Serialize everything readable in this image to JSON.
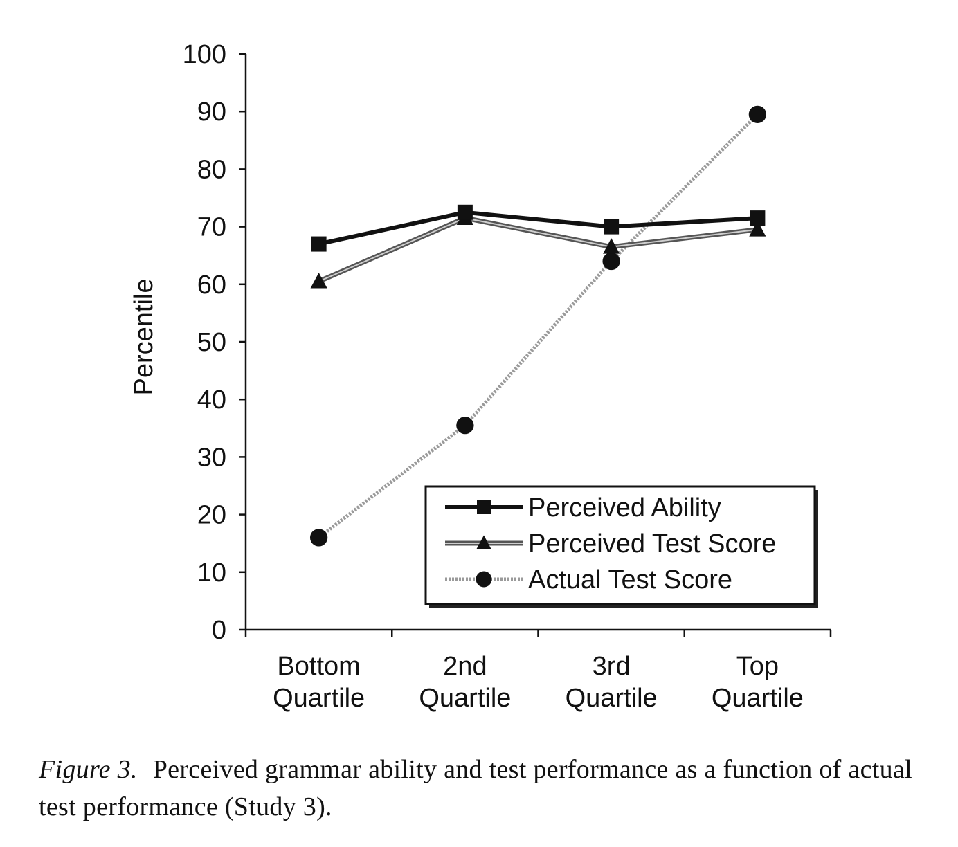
{
  "chart_data": {
    "type": "line",
    "ylabel": "Percentile",
    "xlabel": "",
    "ylim": [
      0,
      100
    ],
    "yticks": [
      0,
      10,
      20,
      30,
      40,
      50,
      60,
      70,
      80,
      90,
      100
    ],
    "categories": [
      "Bottom Quartile",
      "2nd Quartile",
      "3rd Quartile",
      "Top Quartile"
    ],
    "category_lines": [
      [
        "Bottom",
        "Quartile"
      ],
      [
        "2nd",
        "Quartile"
      ],
      [
        "3rd",
        "Quartile"
      ],
      [
        "Top",
        "Quartile"
      ]
    ],
    "series": [
      {
        "name": "Perceived Ability",
        "values": [
          67,
          72.5,
          70,
          71.5
        ],
        "marker": "square",
        "color": "#111111",
        "style": "solid-thick"
      },
      {
        "name": "Perceived Test Score",
        "values": [
          60.5,
          71.5,
          66.5,
          69.5
        ],
        "marker": "triangle",
        "color": "#555555",
        "style": "double"
      },
      {
        "name": "Actual Test Score",
        "values": [
          16,
          35.5,
          64,
          89.5
        ],
        "marker": "circle",
        "color": "#9a9a9a",
        "style": "dotted"
      }
    ],
    "legend_position": "bottom-right",
    "grid": false
  },
  "caption": {
    "label": "Figure 3.",
    "text": "Perceived grammar ability and test performance as a function of actual test performance (Study 3)."
  }
}
